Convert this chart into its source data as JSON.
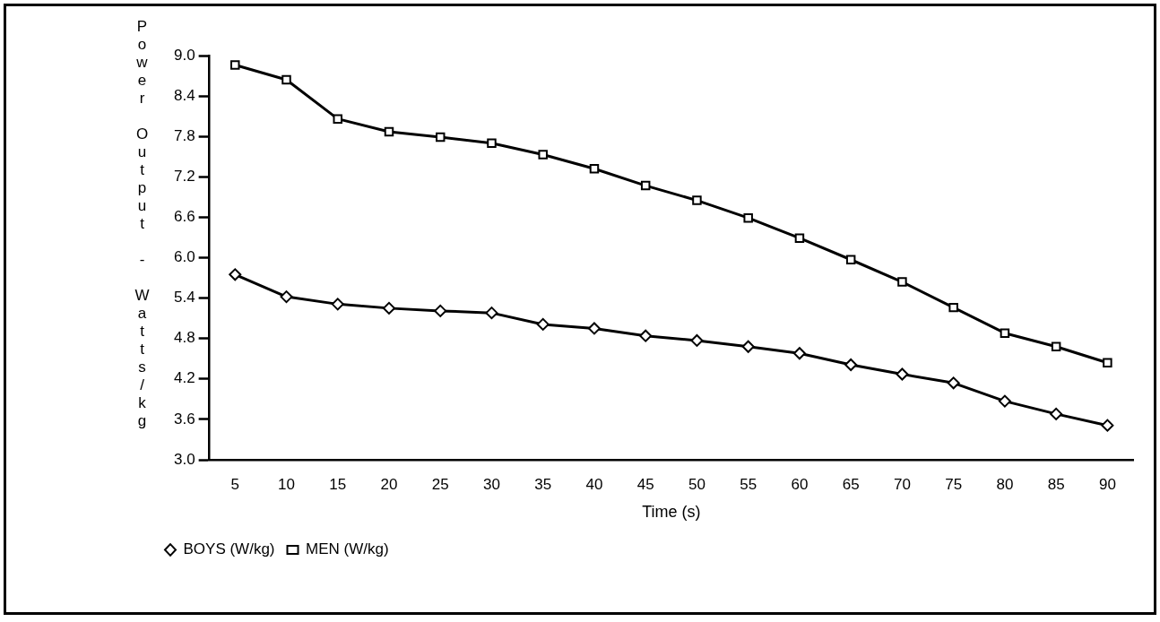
{
  "chart_data": {
    "type": "line",
    "xlabel": "Time (s)",
    "ylabel": "Power Output - Watts/kg",
    "categories": [
      "5",
      "10",
      "15",
      "20",
      "25",
      "30",
      "35",
      "40",
      "45",
      "50",
      "55",
      "60",
      "65",
      "70",
      "75",
      "80",
      "85",
      "90"
    ],
    "ylim": [
      3.0,
      9.0
    ],
    "yticks": [
      {
        "value": 3.0,
        "label": "3.0"
      },
      {
        "value": 3.6,
        "label": "3.6"
      },
      {
        "value": 4.2,
        "label": "4.2"
      },
      {
        "value": 4.8,
        "label": "4.8"
      },
      {
        "value": 5.4,
        "label": "5.4"
      },
      {
        "value": 6.0,
        "label": "6.0"
      },
      {
        "value": 6.6,
        "label": "6.6"
      },
      {
        "value": 7.2,
        "label": "7.2"
      },
      {
        "value": 7.8,
        "label": "7.8"
      },
      {
        "value": 8.4,
        "label": "8.4"
      },
      {
        "value": 9.0,
        "label": "9.0"
      }
    ],
    "grid": false,
    "legend": "bottom left",
    "line_style": "solid",
    "series": [
      {
        "name": "BOYS (W/kg)",
        "color": "#000000",
        "marker": "diamond",
        "values": [
          5.75,
          5.42,
          5.31,
          5.25,
          5.21,
          5.18,
          5.01,
          4.95,
          4.84,
          4.77,
          4.68,
          4.58,
          4.41,
          4.27,
          4.14,
          3.87,
          3.68,
          3.51
        ]
      },
      {
        "name": "MEN (W/kg)",
        "color": "#000000",
        "marker": "square",
        "values": [
          8.86,
          8.64,
          8.06,
          7.87,
          7.79,
          7.7,
          7.53,
          7.32,
          7.07,
          6.85,
          6.59,
          6.29,
          5.97,
          5.64,
          5.26,
          4.88,
          4.68,
          4.44
        ]
      }
    ]
  }
}
